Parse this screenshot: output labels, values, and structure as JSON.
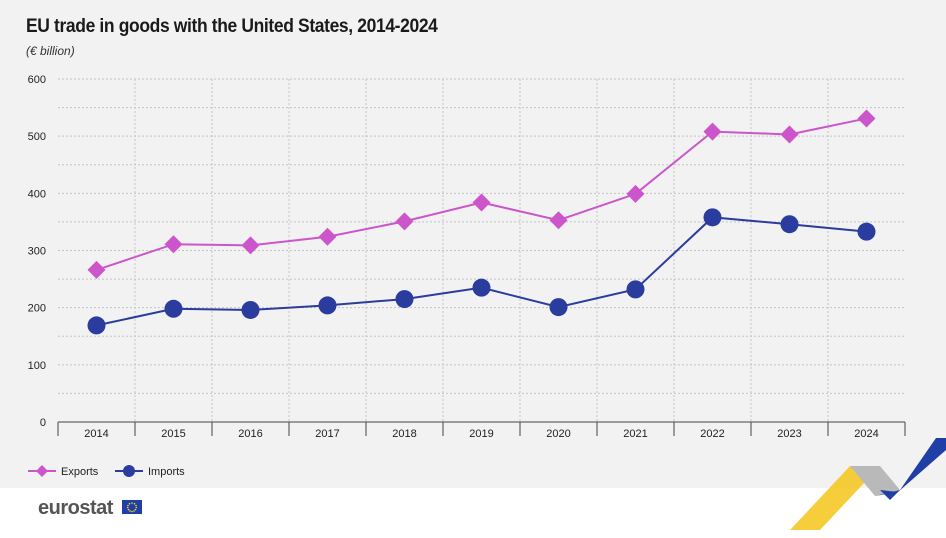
{
  "title": "EU trade in goods with the United States, 2014-2024",
  "subtitle": "(€ billion)",
  "brand": "eurostat",
  "chart_data": {
    "type": "line",
    "categories": [
      "2014",
      "2015",
      "2016",
      "2017",
      "2018",
      "2019",
      "2020",
      "2021",
      "2022",
      "2023",
      "2024"
    ],
    "series": [
      {
        "name": "Exports",
        "color": "#cc55cc",
        "marker": "diamond",
        "values": [
          266,
          311,
          309,
          324,
          351,
          384,
          353,
          399,
          508,
          503,
          531
        ]
      },
      {
        "name": "Imports",
        "color": "#2a3c9e",
        "marker": "circle",
        "values": [
          169,
          198,
          196,
          204,
          215,
          235,
          201,
          232,
          358,
          346,
          333
        ]
      }
    ],
    "yticks": [
      0,
      100,
      200,
      300,
      400,
      500,
      600
    ],
    "ylim": [
      0,
      600
    ],
    "grid": true,
    "legend_position": "bottom-left"
  }
}
